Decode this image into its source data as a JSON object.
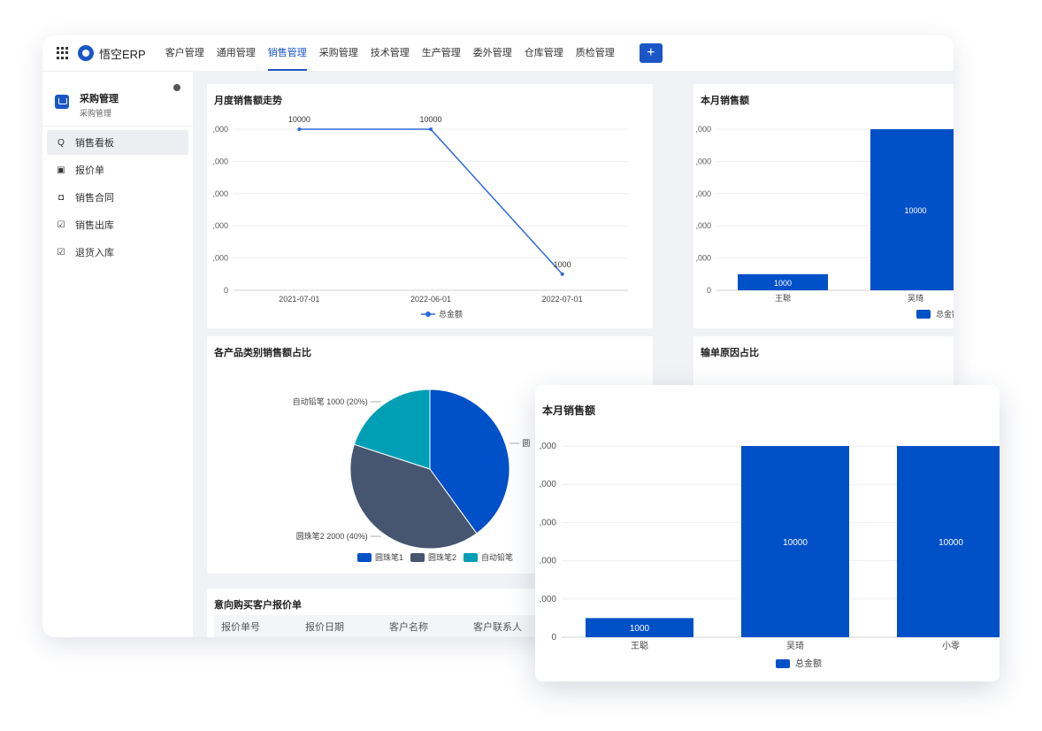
{
  "app": {
    "title": "悟空ERP",
    "add_label": "+"
  },
  "nav": [
    "客户管理",
    "通用管理",
    "销售管理",
    "采购管理",
    "技术管理",
    "生产管理",
    "委外管理",
    "仓库管理",
    "质检管理"
  ],
  "nav_active_index": 2,
  "sidebar": {
    "title": "采购管理",
    "subtitle": "采购管理",
    "items": [
      {
        "label": "销售看板",
        "icon": "search-icon"
      },
      {
        "label": "报价单",
        "icon": "quote-icon"
      },
      {
        "label": "销售合同",
        "icon": "contract-icon"
      },
      {
        "label": "销售出库",
        "icon": "edit-icon"
      },
      {
        "label": "退货入库",
        "icon": "edit-icon"
      }
    ]
  },
  "cards": {
    "trend_title": "月度销售额走势",
    "month_title": "本月销售额",
    "category_title": "各产品类别销售额占比",
    "loss_title": "输单原因占比",
    "quote_title": "意向购买客户报价单"
  },
  "quote_table": {
    "columns": [
      "报价单号",
      "报价日期",
      "客户名称",
      "客户联系人"
    ]
  },
  "overlay": {
    "title": "本月销售额"
  },
  "colors": {
    "primary": "#0050c8",
    "slate": "#465570",
    "teal": "#009fb5",
    "line": "#2e6bd9"
  },
  "chart_data": [
    {
      "type": "line",
      "title": "月度销售额走势",
      "x": [
        "2021-07-01",
        "2022-06-01",
        "2022-07-01"
      ],
      "yticks": [
        ",000",
        ",000",
        ",000",
        ",000",
        ",000",
        "0"
      ],
      "series": [
        {
          "name": "总金额",
          "values": [
            10000,
            10000,
            1000
          ]
        }
      ],
      "ylim": [
        0,
        10000
      ],
      "legend": "bottom"
    },
    {
      "type": "bar",
      "title": "本月销售额",
      "categories": [
        "王聪",
        "吴琦"
      ],
      "yticks": [
        ",000",
        ",000",
        ",000",
        ",000",
        ",000",
        "0"
      ],
      "series": [
        {
          "name": "总金额",
          "values": [
            1000,
            10000
          ]
        }
      ],
      "ylim": [
        0,
        10000
      ],
      "legend": "bottom"
    },
    {
      "type": "pie",
      "title": "各产品类别销售额占比",
      "slices": [
        {
          "name": "圆珠笔1",
          "value": 2000,
          "percent": 40,
          "color": "#0050c8"
        },
        {
          "name": "圆珠笔2",
          "value": 2000,
          "percent": 40,
          "color": "#465570"
        },
        {
          "name": "自动铅笔",
          "value": 1000,
          "percent": 20,
          "color": "#009fb5"
        }
      ],
      "labels": [
        "自动铅笔 1000 (20%)",
        "圆珠笔2 2000 (40%)",
        "圆"
      ],
      "legend": "bottom"
    },
    {
      "type": "bar",
      "title": "本月销售额",
      "categories": [
        "王聪",
        "吴琦",
        "小零"
      ],
      "yticks": [
        ",000",
        ",000",
        ",000",
        ",000",
        ",000",
        "0"
      ],
      "series": [
        {
          "name": "总金额",
          "values": [
            1000,
            10000,
            10000
          ]
        }
      ],
      "ylim": [
        0,
        10000
      ],
      "legend": "bottom"
    }
  ]
}
